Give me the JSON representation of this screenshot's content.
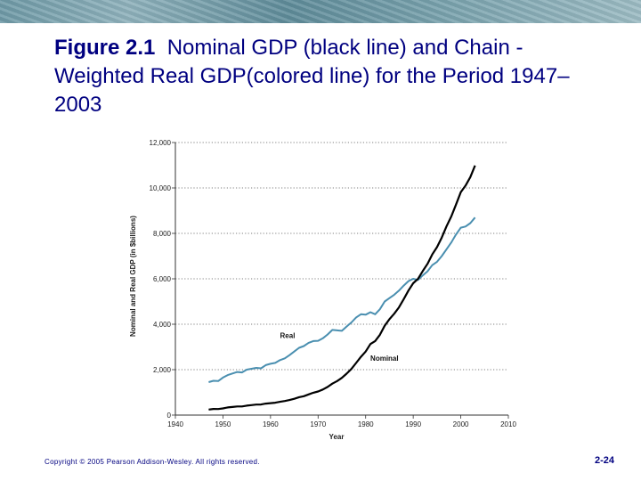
{
  "slide": {
    "title_bold": "Figure 2.1",
    "title_rest": "Nominal GDP (black line) and Chain -Weighted Real GDP(colored line) for the Period 1947–2003",
    "copyright": "Copyright © 2005 Pearson Addison-Wesley. All rights reserved.",
    "page_number": "2-24"
  },
  "chart_data": {
    "type": "line",
    "xlabel": "Year",
    "ylabel": "Nominal and Real GDP (in $billions)",
    "xlim": [
      1940,
      2010
    ],
    "ylim": [
      0,
      12000
    ],
    "x_ticks": [
      1940,
      1950,
      1960,
      1970,
      1980,
      1990,
      2000,
      2010
    ],
    "y_ticks": [
      "0",
      "2,000",
      "4,000",
      "6,000",
      "8,000",
      "10,000",
      "12,000"
    ],
    "y_tick_values": [
      0,
      2000,
      4000,
      6000,
      8000,
      10000,
      12000
    ],
    "grid": "horizontal dotted",
    "series": [
      {
        "name": "Real",
        "color": "#4a8fb0",
        "x": [
          1947,
          1948,
          1949,
          1950,
          1951,
          1952,
          1953,
          1954,
          1955,
          1956,
          1957,
          1958,
          1959,
          1960,
          1961,
          1962,
          1963,
          1964,
          1965,
          1966,
          1967,
          1968,
          1969,
          1970,
          1971,
          1972,
          1973,
          1974,
          1975,
          1976,
          1977,
          1978,
          1979,
          1980,
          1981,
          1982,
          1983,
          1984,
          1985,
          1986,
          1987,
          1988,
          1989,
          1990,
          1991,
          1992,
          1993,
          1994,
          1995,
          1996,
          1997,
          1998,
          1999,
          2000,
          2001,
          2002,
          2003
        ],
        "values": [
          1450,
          1510,
          1500,
          1650,
          1760,
          1830,
          1900,
          1880,
          2000,
          2040,
          2080,
          2060,
          2200,
          2260,
          2300,
          2420,
          2500,
          2640,
          2800,
          2960,
          3040,
          3180,
          3260,
          3270,
          3380,
          3550,
          3750,
          3730,
          3710,
          3900,
          4080,
          4300,
          4440,
          4420,
          4530,
          4440,
          4660,
          5000,
          5150,
          5300,
          5480,
          5700,
          5900,
          6000,
          5950,
          6150,
          6330,
          6600,
          6750,
          7000,
          7300,
          7600,
          7950,
          8250,
          8300,
          8450,
          8700
        ]
      },
      {
        "name": "Nominal",
        "color": "#000000",
        "x": [
          1947,
          1948,
          1949,
          1950,
          1951,
          1952,
          1953,
          1954,
          1955,
          1956,
          1957,
          1958,
          1959,
          1960,
          1961,
          1962,
          1963,
          1964,
          1965,
          1966,
          1967,
          1968,
          1969,
          1970,
          1971,
          1972,
          1973,
          1974,
          1975,
          1976,
          1977,
          1978,
          1979,
          1980,
          1981,
          1982,
          1983,
          1984,
          1985,
          1986,
          1987,
          1988,
          1989,
          1990,
          1991,
          1992,
          1993,
          1994,
          1995,
          1996,
          1997,
          1998,
          1999,
          2000,
          2001,
          2002,
          2003
        ],
        "values": [
          244,
          269,
          267,
          294,
          339,
          358,
          379,
          380,
          415,
          438,
          461,
          467,
          507,
          527,
          545,
          586,
          618,
          664,
          719,
          788,
          833,
          910,
          985,
          1039,
          1127,
          1238,
          1383,
          1500,
          1638,
          1825,
          2031,
          2295,
          2566,
          2796,
          3131,
          3259,
          3535,
          3933,
          4220,
          4463,
          4740,
          5104,
          5484,
          5803,
          5996,
          6338,
          6657,
          7072,
          7398,
          7817,
          8304,
          8747,
          9268,
          9817,
          10100,
          10480,
          10990
        ]
      }
    ],
    "annotations": [
      {
        "text": "Real",
        "x": 1962,
        "y": 3400
      },
      {
        "text": "Nominal",
        "x": 1981,
        "y": 2400
      }
    ]
  }
}
